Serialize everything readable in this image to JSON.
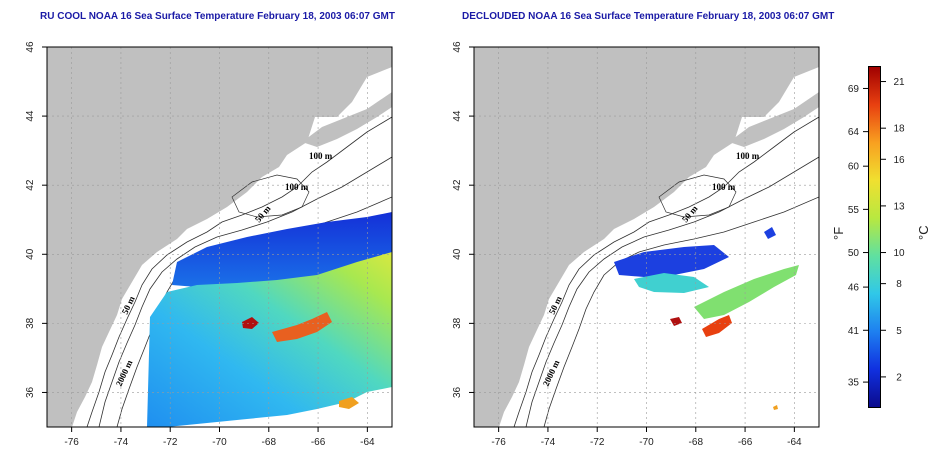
{
  "titles": {
    "left": "RU COOL NOAA 16 Sea Surface Temperature February 18, 2003 06:07 GMT",
    "right": "DECLOUDED NOAA 16 Sea Surface Temperature February 18, 2003 06:07 GMT"
  },
  "map_extent": {
    "lon_min": -77,
    "lon_max": -63,
    "lat_min": 35,
    "lat_max": 46
  },
  "x_ticks": [
    {
      "value": -76,
      "label": "-76"
    },
    {
      "value": -74,
      "label": "-74"
    },
    {
      "value": -72,
      "label": "-72"
    },
    {
      "value": -70,
      "label": "-70"
    },
    {
      "value": -68,
      "label": "-68"
    },
    {
      "value": -66,
      "label": "-66"
    },
    {
      "value": -64,
      "label": "-64"
    }
  ],
  "y_ticks": [
    {
      "value": 36,
      "label": "36"
    },
    {
      "value": 38,
      "label": "38"
    },
    {
      "value": 40,
      "label": "40"
    },
    {
      "value": 42,
      "label": "42"
    },
    {
      "value": 44,
      "label": "44"
    },
    {
      "value": 46,
      "label": "46"
    }
  ],
  "contour_labels": {
    "left": [
      "100 m",
      "100 m",
      "50 m",
      "50 m",
      "2000 m"
    ],
    "right": [
      "100 m",
      "100 m",
      "50 m",
      "50 m",
      "2000 m"
    ]
  },
  "colorbar": {
    "c_min": 0,
    "c_max": 22,
    "fahrenheit_label": "°F",
    "celsius_label": "°C",
    "fahrenheit_ticks": [
      {
        "value": 35,
        "label": "35"
      },
      {
        "value": 41,
        "label": "41"
      },
      {
        "value": 46,
        "label": "46"
      },
      {
        "value": 50,
        "label": "50"
      },
      {
        "value": 55,
        "label": "55"
      },
      {
        "value": 60,
        "label": "60"
      },
      {
        "value": 64,
        "label": "64"
      },
      {
        "value": 69,
        "label": "69"
      }
    ],
    "celsius_ticks": [
      {
        "value": 2,
        "label": "2"
      },
      {
        "value": 5,
        "label": "5"
      },
      {
        "value": 8,
        "label": "8"
      },
      {
        "value": 10,
        "label": "10"
      },
      {
        "value": 13,
        "label": "13"
      },
      {
        "value": 16,
        "label": "16"
      },
      {
        "value": 18,
        "label": "18"
      },
      {
        "value": 21,
        "label": "21"
      }
    ],
    "gradient_colors": [
      "#0b0b8c",
      "#1030e0",
      "#1e80f0",
      "#30c8e8",
      "#60e0a0",
      "#b8e840",
      "#f0e030",
      "#f8a020",
      "#e84010",
      "#a00000"
    ]
  },
  "colors": {
    "land": "#c0c0c0",
    "grid": "#9a9a9a",
    "contour": "#303030"
  }
}
